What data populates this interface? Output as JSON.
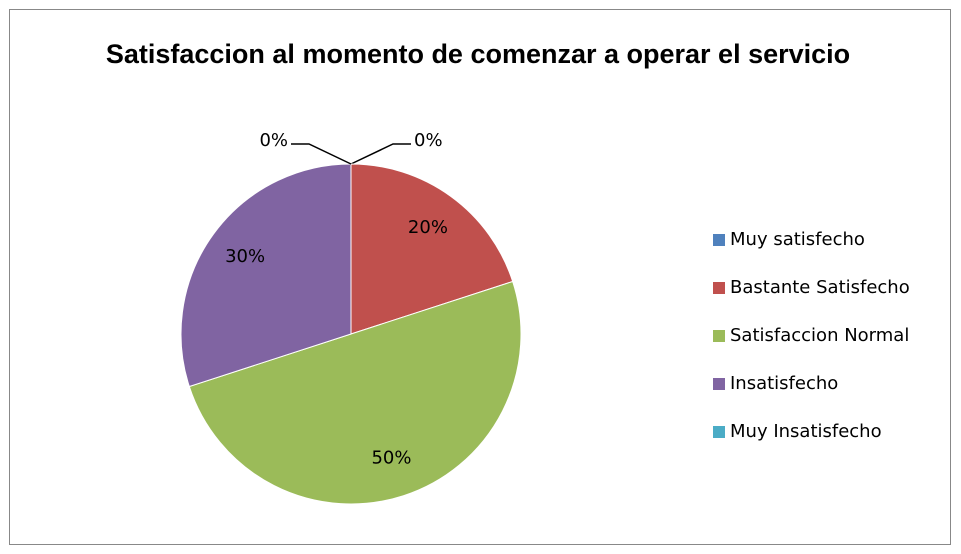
{
  "chart_data": {
    "type": "pie",
    "title": "Satisfaccion al momento de comenzar a operar el servicio",
    "categories": [
      "Muy satisfecho",
      "Bastante Satisfecho",
      "Satisfaccion Normal",
      "Insatisfecho",
      "Muy Insatisfecho"
    ],
    "values": [
      0,
      20,
      50,
      30,
      0
    ],
    "value_labels": [
      "0%",
      "20%",
      "50%",
      "30%",
      "0%"
    ],
    "colors": [
      "#4f81bd",
      "#c0504d",
      "#9bbb59",
      "#8064a2",
      "#4bacc6"
    ],
    "legend": "right"
  }
}
